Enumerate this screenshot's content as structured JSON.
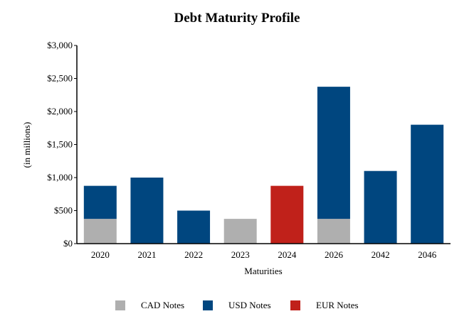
{
  "chart_data": {
    "type": "bar",
    "stacked": true,
    "title": "Debt Maturity Profile",
    "xlabel": "Maturities",
    "ylabel": "(in millions)",
    "ylim": [
      0,
      3000
    ],
    "yticks": [
      0,
      500,
      1000,
      1500,
      2000,
      2500,
      3000
    ],
    "ytick_labels": [
      "$0",
      "$500",
      "$1,000",
      "$1,500",
      "$2,000",
      "$2,500",
      "$3,000"
    ],
    "grid": false,
    "legend_position": "bottom",
    "categories": [
      "2020",
      "2021",
      "2022",
      "2023",
      "2024",
      "2026",
      "2042",
      "2046"
    ],
    "series": [
      {
        "name": "CAD Notes",
        "color": "#afafaf",
        "values": [
          375,
          0,
          0,
          375,
          0,
          375,
          0,
          0
        ]
      },
      {
        "name": "USD Notes",
        "color": "#00467f",
        "values": [
          500,
          1000,
          500,
          0,
          0,
          2000,
          1100,
          1800
        ]
      },
      {
        "name": "EUR Notes",
        "color": "#c0211a",
        "values": [
          0,
          0,
          0,
          0,
          875,
          0,
          0,
          0
        ]
      }
    ]
  }
}
